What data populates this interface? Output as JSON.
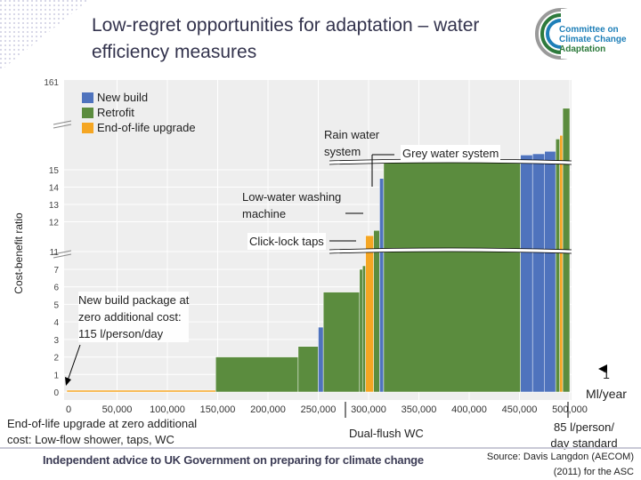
{
  "title": "Low-regret opportunities for adaptation – water efficiency measures",
  "logo": {
    "line1": "Committee on",
    "line2": "Climate Change",
    "line3": "Adaptation",
    "colors": {
      "blue": "#1e7fb8",
      "green": "#2d7a3c",
      "grey": "#9a9a9a"
    }
  },
  "footer": "Independent advice to UK Government on preparing for climate change",
  "source_line1": "Source: Davis Langdon (AECOM)",
  "source_line2": "(2011) for the ASC",
  "chart_data": {
    "type": "bar",
    "subtype": "marginal-abatement-cost-curve",
    "ylabel": "Cost-benefit ratio",
    "xlabel": "Ml/year",
    "x_ticks": [
      "0",
      "50,000",
      "100,000",
      "150,000",
      "200,000",
      "250,000",
      "300,000",
      "350,000",
      "400,000",
      "450,000",
      "500,000"
    ],
    "y_ticks": [
      "0",
      "1",
      "2",
      "3",
      "4",
      "5",
      "6",
      "7",
      "11",
      "12",
      "13",
      "14",
      "15",
      "161"
    ],
    "y_axis_breaks": [
      "between 7 and 11",
      "between 15 and 161"
    ],
    "legend": [
      {
        "label": "New build",
        "color": "#4f73bd"
      },
      {
        "label": "Retrofit",
        "color": "#5b8c3e"
      },
      {
        "label": "End-of-life upgrade",
        "color": "#f5a623"
      }
    ],
    "bars": [
      {
        "x0": 0,
        "x1": 148000,
        "y": 0.1,
        "type": "End-of-life upgrade"
      },
      {
        "x0": 148000,
        "x1": 230000,
        "y": 2.0,
        "type": "Retrofit"
      },
      {
        "x0": 230000,
        "x1": 250000,
        "y": 2.6,
        "type": "Retrofit"
      },
      {
        "x0": 250000,
        "x1": 255000,
        "y": 3.7,
        "type": "New build"
      },
      {
        "x0": 255000,
        "x1": 291000,
        "y": 5.7,
        "type": "Retrofit"
      },
      {
        "x0": 291000,
        "x1": 294000,
        "y": 7.0,
        "type": "Retrofit"
      },
      {
        "x0": 294000,
        "x1": 297000,
        "y": 7.8,
        "type": "Retrofit"
      },
      {
        "x0": 297000,
        "x1": 305000,
        "y": 11.2,
        "type": "End-of-life upgrade"
      },
      {
        "x0": 305000,
        "x1": 311000,
        "y": 11.5,
        "type": "Retrofit"
      },
      {
        "x0": 311000,
        "x1": 315000,
        "y": 14.5,
        "type": "New build"
      },
      {
        "x0": 315000,
        "x1": 451000,
        "y": 15.7,
        "type": "Retrofit"
      },
      {
        "x0": 451000,
        "x1": 463000,
        "y": 16.2,
        "type": "New build"
      },
      {
        "x0": 463000,
        "x1": 475000,
        "y": 16.3,
        "type": "New build"
      },
      {
        "x0": 475000,
        "x1": 486000,
        "y": 16.5,
        "type": "New build"
      },
      {
        "x0": 486000,
        "x1": 490000,
        "y": 17.5,
        "type": "Retrofit"
      },
      {
        "x0": 490000,
        "x1": 493000,
        "y": 17.8,
        "type": "End-of-life upgrade"
      },
      {
        "x0": 493000,
        "x1": 500000,
        "y": 20.0,
        "type": "Retrofit"
      }
    ],
    "annotations": {
      "rain_water": "Rain water system",
      "grey_water": "Grey water system",
      "low_water": "Low-water washing machine",
      "click_lock": "Click-lock taps",
      "new_build_line1": "New build package at",
      "new_build_line2": "zero additional cost:",
      "new_build_line3": "115 l/person/day",
      "end_of_life_line1": "End-of-life upgrade at zero additional",
      "end_of_life_line2": "cost: Low-flow shower, taps, WC",
      "dual_flush": "Dual-flush WC",
      "standard_line1": "85 l/person/",
      "standard_line2": "day standard",
      "one_ml_line1": "1",
      "one_ml_line2": "Ml/year"
    }
  }
}
